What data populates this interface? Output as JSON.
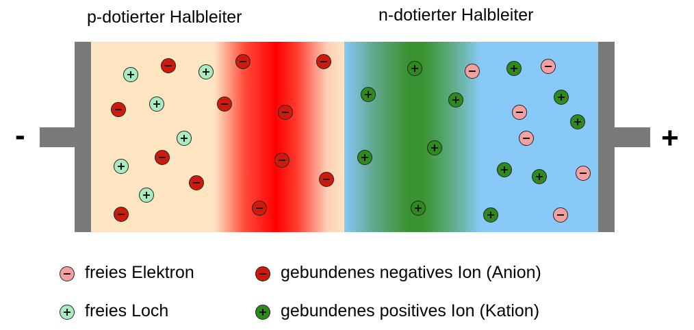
{
  "title_p": "p-dotierter Halbleiter",
  "title_n": "n-dotierter Halbleiter",
  "terminal_minus": "-",
  "terminal_plus": "+",
  "colors": {
    "free_electron": "#f4a0a0",
    "free_hole": "#a8ecc0",
    "anion": "#cc1a0c",
    "cation": "#2f8a1e",
    "p_region": "#fde5c2",
    "n_region": "#88c9f8",
    "depletion_p": "#ff0000",
    "depletion_n": "#2e8a1a",
    "electrode": "#7a7a7a"
  },
  "legend": {
    "free_electron": "freies Elektron",
    "free_hole": "freies Loch",
    "anion": "gebundenes negatives Ion (Anion)",
    "cation": "gebundenes positives Ion (Kation)"
  }
}
